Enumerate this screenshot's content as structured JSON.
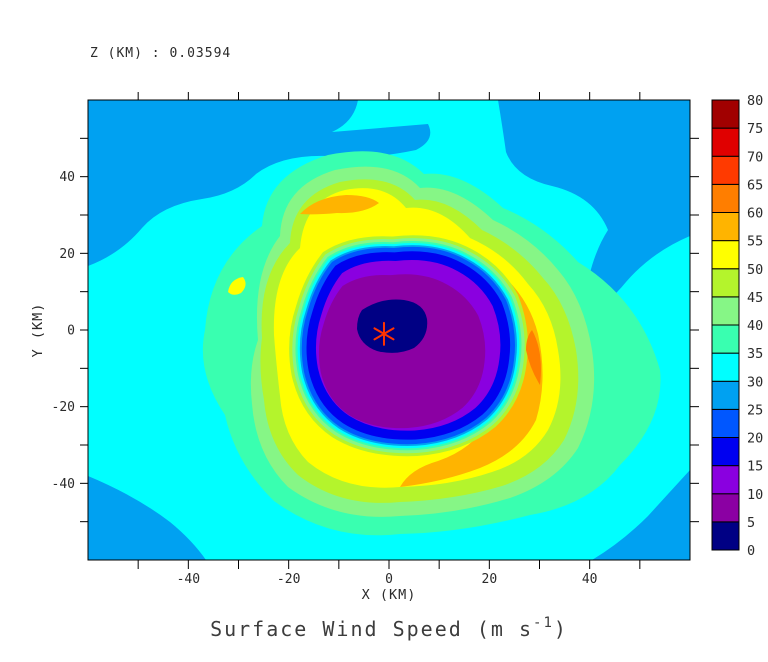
{
  "page": {
    "background": "#FFFFFF"
  },
  "header": {
    "level_text": "Z (KM) : 0.03594"
  },
  "chart_data": {
    "type": "filled_contour",
    "title": "Surface Wind Speed (m s⁻¹)",
    "title_parts": {
      "prefix": "Surface Wind Speed (m s",
      "superscript": "-1",
      "suffix": ")"
    },
    "xlabel": "X (KM)",
    "ylabel": "Y (KM)",
    "xlim_km": [
      -60,
      60
    ],
    "ylim_km": [
      -60,
      60
    ],
    "tick_interval_km": 10,
    "x_ticks": [
      -50,
      -40,
      -30,
      -20,
      -10,
      0,
      10,
      20,
      30,
      40,
      50
    ],
    "x_labeled_ticks": [
      -40,
      -20,
      0,
      20,
      40
    ],
    "y_ticks": [
      -50,
      -40,
      -30,
      -20,
      -10,
      0,
      10,
      20,
      30,
      40,
      50
    ],
    "y_labeled_ticks": [
      40,
      20,
      0,
      -20,
      -40
    ],
    "grid": false,
    "levels_m_s": [
      0,
      5,
      10,
      15,
      20,
      25,
      30,
      35,
      40,
      45,
      50,
      55,
      60,
      65,
      70,
      75,
      80
    ],
    "palette": [
      "#000084",
      "#8B00A3",
      "#8A00E0",
      "#0000F0",
      "#0057FF",
      "#00A1F1",
      "#00FFFF",
      "#39FFB0",
      "#86F686",
      "#B4F42C",
      "#FFFF00",
      "#FFB400",
      "#FF7E00",
      "#FF3A00",
      "#E00000",
      "#A10000"
    ],
    "colorbar": {
      "position": "right",
      "labels": [
        0,
        5,
        10,
        15,
        20,
        25,
        30,
        35,
        40,
        45,
        50,
        55,
        60,
        65,
        70,
        75,
        80
      ]
    },
    "storm_center_marker": {
      "x_km": -1,
      "y_km": -1,
      "symbol": "asterisk",
      "color": "#FF3300"
    },
    "features": {
      "eye_minimum_range_m_s": [
        0,
        5
      ],
      "eyewall_maximum_range_m_s": [
        60,
        65
      ],
      "eyewall_maximum_locations": [
        "east of center near x=28 km, y=-8 km",
        "north-northwest of center near x=-12 km, y=32 km"
      ],
      "environment_range_m_s": [
        25,
        40
      ]
    }
  }
}
